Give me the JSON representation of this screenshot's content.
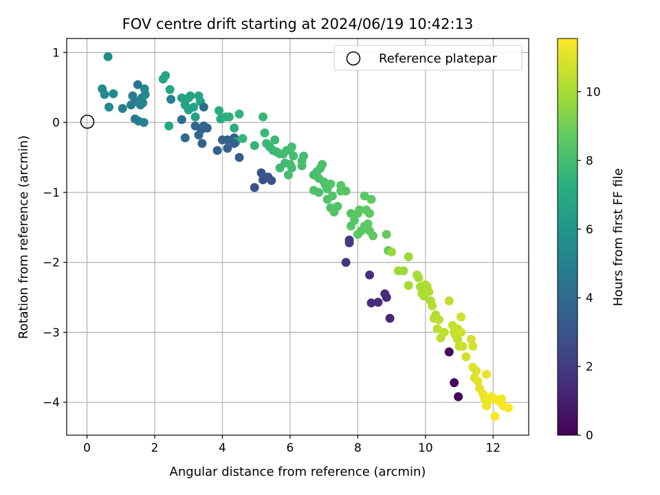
{
  "chart_data": {
    "type": "scatter",
    "title": "FOV centre drift starting at 2024/06/19 10:42:13",
    "xlabel": "Angular distance from reference (arcmin)",
    "ylabel": "Rotation from reference (arcmin)",
    "xlim": [
      -0.6,
      13.05
    ],
    "ylim": [
      -4.47,
      1.2
    ],
    "xticks": [
      0,
      2,
      4,
      6,
      8,
      10,
      12
    ],
    "yticks": [
      1,
      0,
      -1,
      -2,
      -3,
      -4
    ],
    "xtick_labels": [
      "0",
      "2",
      "4",
      "6",
      "8",
      "10",
      "12"
    ],
    "ytick_labels": [
      "1",
      "0",
      "−1",
      "−2",
      "−3",
      "−4"
    ],
    "grid": true,
    "legend": {
      "position": "top-right",
      "entries": [
        "Reference platepar"
      ]
    },
    "reference_point": {
      "x": 0,
      "y": 0
    },
    "colorbar": {
      "label": "Hours from first FF file",
      "range": [
        0,
        11.55
      ],
      "ticks": [
        0,
        2,
        4,
        6,
        8,
        10
      ],
      "colormap": "viridis"
    },
    "points": [
      [
        0.62,
        0.94,
        5.6
      ],
      [
        0.45,
        0.48,
        5.5
      ],
      [
        0.52,
        0.4,
        5.4
      ],
      [
        0.78,
        0.41,
        5.5
      ],
      [
        0.65,
        0.22,
        5.5
      ],
      [
        1.05,
        0.2,
        5.0
      ],
      [
        1.3,
        0.25,
        4.9
      ],
      [
        1.35,
        0.38,
        4.8
      ],
      [
        1.42,
        0.3,
        4.7
      ],
      [
        1.5,
        0.54,
        4.5
      ],
      [
        1.55,
        0.3,
        4.9
      ],
      [
        1.62,
        0.35,
        5.1
      ],
      [
        1.7,
        0.48,
        5.3
      ],
      [
        1.72,
        0.4,
        5.4
      ],
      [
        1.65,
        0.28,
        5.3
      ],
      [
        1.58,
        0.25,
        5.2
      ],
      [
        1.42,
        0.05,
        4.8
      ],
      [
        1.52,
        0.02,
        4.8
      ],
      [
        1.68,
        0.0,
        5.1
      ],
      [
        2.25,
        0.62,
        6.7
      ],
      [
        2.32,
        0.67,
        6.8
      ],
      [
        2.45,
        0.47,
        6.8
      ],
      [
        2.48,
        0.33,
        4.9
      ],
      [
        2.42,
        -0.05,
        6.8
      ],
      [
        2.8,
        0.35,
        6.6
      ],
      [
        2.9,
        0.25,
        6.6
      ],
      [
        3.0,
        0.35,
        6.6
      ],
      [
        3.05,
        0.38,
        6.7
      ],
      [
        3.0,
        0.18,
        6.7
      ],
      [
        3.15,
        0.22,
        6.7
      ],
      [
        3.2,
        0.08,
        6.6
      ],
      [
        3.3,
        0.38,
        6.8
      ],
      [
        3.35,
        0.3,
        6.7
      ],
      [
        3.45,
        0.22,
        4.2
      ],
      [
        2.8,
        0.04,
        4.2
      ],
      [
        2.9,
        -0.22,
        4.0
      ],
      [
        3.2,
        -0.05,
        3.9
      ],
      [
        3.3,
        -0.18,
        3.9
      ],
      [
        3.38,
        -0.1,
        3.8
      ],
      [
        3.45,
        -0.05,
        3.8
      ],
      [
        3.55,
        -0.08,
        3.7
      ],
      [
        3.4,
        -0.3,
        3.7
      ],
      [
        3.85,
        -0.4,
        3.6
      ],
      [
        3.9,
        0.17,
        7.2
      ],
      [
        3.95,
        0.05,
        7.1
      ],
      [
        4.1,
        0.08,
        7.3
      ],
      [
        4.2,
        0.08,
        7.4
      ],
      [
        4.0,
        -0.25,
        3.6
      ],
      [
        4.15,
        -0.25,
        3.6
      ],
      [
        4.15,
        -0.37,
        3.5
      ],
      [
        4.35,
        -0.08,
        7.3
      ],
      [
        4.35,
        -0.22,
        3.5
      ],
      [
        4.4,
        -0.28,
        7.5
      ],
      [
        4.35,
        -0.3,
        3.5
      ],
      [
        4.5,
        0.12,
        7.5
      ],
      [
        4.5,
        -0.5,
        3.4
      ],
      [
        4.6,
        -0.23,
        7.6
      ],
      [
        4.95,
        -0.33,
        7.6
      ],
      [
        5.2,
        0.08,
        7.7
      ],
      [
        5.25,
        -0.15,
        7.8
      ],
      [
        5.3,
        -0.3,
        7.8
      ],
      [
        5.4,
        -0.35,
        7.8
      ],
      [
        5.5,
        -0.4,
        7.8
      ],
      [
        5.55,
        -0.25,
        7.8
      ],
      [
        5.6,
        -0.42,
        7.8
      ],
      [
        5.7,
        -0.45,
        7.9
      ],
      [
        5.7,
        -0.65,
        7.9
      ],
      [
        5.8,
        -0.45,
        7.9
      ],
      [
        5.85,
        -0.58,
        7.9
      ],
      [
        5.9,
        -0.4,
        8.0
      ],
      [
        6.0,
        -0.4,
        8.0
      ],
      [
        6.0,
        -0.6,
        8.0
      ],
      [
        6.05,
        -0.35,
        8.0
      ],
      [
        5.95,
        -0.75,
        8.0
      ],
      [
        6.05,
        -0.65,
        8.0
      ],
      [
        6.1,
        -0.48,
        8.0
      ],
      [
        5.15,
        -0.72,
        3.0
      ],
      [
        5.2,
        -0.82,
        3.0
      ],
      [
        5.35,
        -0.78,
        3.0
      ],
      [
        5.45,
        -0.83,
        3.0
      ],
      [
        4.95,
        -0.93,
        2.9
      ],
      [
        6.35,
        -0.55,
        8.1
      ],
      [
        6.4,
        -0.48,
        8.1
      ],
      [
        6.35,
        -0.62,
        8.1
      ],
      [
        6.7,
        -0.75,
        8.2
      ],
      [
        6.8,
        -0.7,
        8.2
      ],
      [
        6.85,
        -0.8,
        8.2
      ],
      [
        6.9,
        -0.65,
        8.2
      ],
      [
        6.95,
        -0.6,
        8.2
      ],
      [
        7.0,
        -0.85,
        8.3
      ],
      [
        7.05,
        -0.9,
        8.3
      ],
      [
        6.7,
        -0.97,
        8.3
      ],
      [
        6.85,
        -1.0,
        8.3
      ],
      [
        7.1,
        -0.95,
        8.3
      ],
      [
        7.2,
        -0.88,
        8.4
      ],
      [
        7.25,
        -1.05,
        8.4
      ],
      [
        7.1,
        -1.1,
        8.4
      ],
      [
        7.2,
        -1.22,
        8.4
      ],
      [
        7.3,
        -1.28,
        8.4
      ],
      [
        7.4,
        -1.2,
        8.4
      ],
      [
        7.5,
        -0.9,
        8.5
      ],
      [
        7.5,
        -0.98,
        8.5
      ],
      [
        7.65,
        -0.98,
        8.5
      ],
      [
        7.8,
        -1.3,
        8.5
      ],
      [
        7.8,
        -1.48,
        8.5
      ],
      [
        7.9,
        -1.4,
        8.6
      ],
      [
        8.0,
        -1.3,
        8.6
      ],
      [
        8.05,
        -1.25,
        8.6
      ],
      [
        8.1,
        -1.55,
        8.6
      ],
      [
        8.0,
        -1.6,
        8.6
      ],
      [
        8.2,
        -1.05,
        8.6
      ],
      [
        8.25,
        -1.25,
        8.6
      ],
      [
        8.3,
        -1.45,
        8.7
      ],
      [
        8.35,
        -1.55,
        8.7
      ],
      [
        8.4,
        -1.1,
        8.7
      ],
      [
        8.35,
        -1.3,
        8.7
      ],
      [
        8.45,
        -1.62,
        8.7
      ],
      [
        8.2,
        -1.48,
        8.7
      ],
      [
        8.85,
        -1.6,
        8.8
      ],
      [
        8.9,
        -1.83,
        8.8
      ],
      [
        7.75,
        -1.68,
        2.0
      ],
      [
        7.75,
        -1.72,
        2.0
      ],
      [
        7.65,
        -2.0,
        1.9
      ],
      [
        8.35,
        -2.18,
        1.6
      ],
      [
        8.4,
        -2.58,
        1.5
      ],
      [
        8.6,
        -2.57,
        1.5
      ],
      [
        8.8,
        -2.45,
        1.5
      ],
      [
        8.85,
        -2.5,
        1.4
      ],
      [
        8.95,
        -2.8,
        1.3
      ],
      [
        9.0,
        -1.85,
        9.8
      ],
      [
        9.2,
        -2.12,
        9.9
      ],
      [
        9.35,
        -2.12,
        9.9
      ],
      [
        9.5,
        -1.92,
        9.9
      ],
      [
        9.5,
        -2.33,
        10.0
      ],
      [
        9.75,
        -2.18,
        10.0
      ],
      [
        9.8,
        -2.22,
        10.0
      ],
      [
        9.85,
        -2.35,
        10.1
      ],
      [
        9.9,
        -2.45,
        10.1
      ],
      [
        9.95,
        -2.48,
        10.1
      ],
      [
        10.0,
        -2.4,
        10.1
      ],
      [
        10.05,
        -2.35,
        10.2
      ],
      [
        10.1,
        -2.42,
        10.2
      ],
      [
        10.15,
        -2.55,
        10.2
      ],
      [
        10.0,
        -2.32,
        10.1
      ],
      [
        10.2,
        -2.62,
        10.3
      ],
      [
        10.25,
        -2.8,
        10.3
      ],
      [
        10.3,
        -2.75,
        10.3
      ],
      [
        10.4,
        -2.82,
        10.4
      ],
      [
        10.35,
        -2.95,
        10.4
      ],
      [
        10.45,
        -3.08,
        10.4
      ],
      [
        10.55,
        -3.0,
        10.5
      ],
      [
        10.7,
        -2.55,
        10.5
      ],
      [
        10.8,
        -2.9,
        10.6
      ],
      [
        10.85,
        -3.0,
        10.6
      ],
      [
        10.9,
        -3.05,
        10.6
      ],
      [
        10.95,
        -2.95,
        10.6
      ],
      [
        10.95,
        -3.1,
        10.6
      ],
      [
        11.0,
        -3.2,
        10.6
      ],
      [
        11.05,
        -2.78,
        10.7
      ],
      [
        11.05,
        -3.0,
        10.7
      ],
      [
        11.1,
        -3.2,
        10.7
      ],
      [
        11.2,
        -3.35,
        10.8
      ],
      [
        11.35,
        -3.1,
        10.8
      ],
      [
        11.4,
        -3.2,
        10.8
      ],
      [
        11.4,
        -3.5,
        11.0
      ],
      [
        11.5,
        -3.55,
        11.0
      ],
      [
        11.45,
        -3.65,
        11.0
      ],
      [
        11.55,
        -3.7,
        11.1
      ],
      [
        11.6,
        -3.8,
        11.1
      ],
      [
        11.7,
        -3.88,
        11.2
      ],
      [
        11.75,
        -3.95,
        11.2
      ],
      [
        11.8,
        -3.6,
        11.2
      ],
      [
        11.8,
        -4.05,
        11.3
      ],
      [
        11.85,
        -3.98,
        11.3
      ],
      [
        11.95,
        -3.92,
        11.3
      ],
      [
        12.05,
        -3.95,
        11.4
      ],
      [
        12.15,
        -3.98,
        11.4
      ],
      [
        12.25,
        -3.95,
        11.4
      ],
      [
        12.3,
        -4.05,
        11.4
      ],
      [
        12.45,
        -4.08,
        11.5
      ],
      [
        12.05,
        -4.2,
        11.5
      ],
      [
        10.7,
        -3.28,
        0.2
      ],
      [
        10.85,
        -3.72,
        0.2
      ],
      [
        10.97,
        -3.92,
        0.1
      ]
    ]
  }
}
